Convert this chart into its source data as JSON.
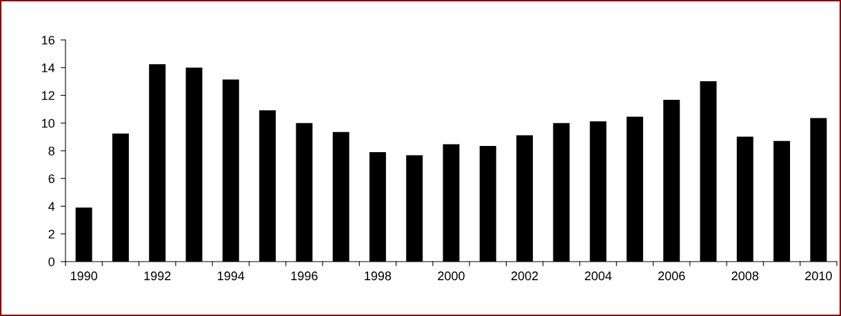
{
  "chart_data": {
    "type": "bar",
    "categories": [
      "1990",
      null,
      "1992",
      null,
      "1994",
      null,
      "1996",
      null,
      "1998",
      null,
      "2000",
      null,
      "2002",
      null,
      "2004",
      null,
      "2006",
      null,
      "2008",
      null,
      "2010"
    ],
    "values": [
      3.9,
      9.24,
      14.25,
      14.0,
      13.14,
      10.92,
      10.0,
      9.36,
      7.9,
      7.68,
      8.47,
      8.35,
      9.12,
      10.0,
      10.13,
      10.46,
      11.68,
      13.02,
      9.02,
      8.71,
      10.36
    ],
    "color": "#000000",
    "ylim": [
      0,
      16
    ],
    "yticks": [
      0,
      2,
      4,
      6,
      8,
      10,
      12,
      14,
      16
    ],
    "grid": false,
    "legend": false
  }
}
